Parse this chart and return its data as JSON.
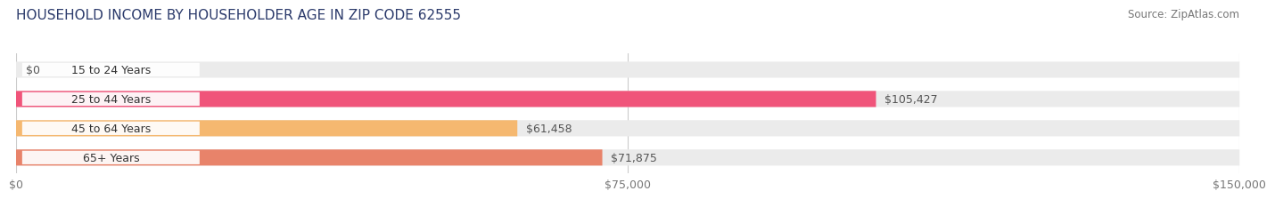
{
  "title": "HOUSEHOLD INCOME BY HOUSEHOLDER AGE IN ZIP CODE 62555",
  "source": "Source: ZipAtlas.com",
  "categories": [
    "15 to 24 Years",
    "25 to 44 Years",
    "45 to 64 Years",
    "65+ Years"
  ],
  "values": [
    0,
    105427,
    61458,
    71875
  ],
  "bar_colors": [
    "#b0b0dd",
    "#f0547a",
    "#f5b870",
    "#e8836a"
  ],
  "bar_bg_color": "#ebebeb",
  "background_color": "#ffffff",
  "xlim": [
    0,
    150000
  ],
  "xticks": [
    0,
    75000,
    150000
  ],
  "xtick_labels": [
    "$0",
    "$75,000",
    "$150,000"
  ],
  "value_labels": [
    "$0",
    "$105,427",
    "$61,458",
    "$71,875"
  ],
  "title_fontsize": 11,
  "source_fontsize": 8.5,
  "cat_fontsize": 9,
  "val_fontsize": 9,
  "bar_height": 0.55,
  "title_color": "#2b3a6b",
  "source_color": "#777777",
  "tick_label_color": "#777777",
  "grid_color": "#cccccc",
  "white_pill_color": "#ffffff"
}
